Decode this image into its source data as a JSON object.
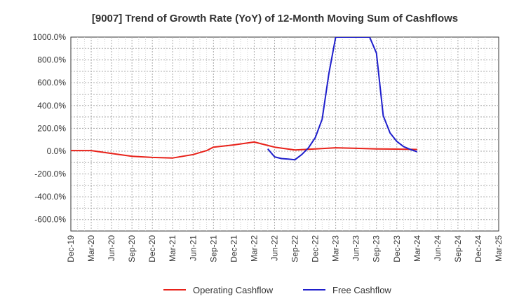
{
  "chart_data": {
    "type": "line",
    "title": "[9007]  Trend of Growth Rate (YoY) of 12-Month Moving Sum of Cashflows",
    "xlabel": "",
    "ylabel": "",
    "ylim": [
      -700,
      1000
    ],
    "y_ticks": [
      1000,
      800,
      600,
      400,
      200,
      0,
      -200,
      -400,
      -600
    ],
    "y_tick_labels": [
      "1000.0%",
      "800.0%",
      "600.0%",
      "400.0%",
      "200.0%",
      "0.0%",
      "-200.0%",
      "-400.0%",
      "-600.0%"
    ],
    "x_range": [
      "Dec-19",
      "Mar-25"
    ],
    "x_tick_labels": [
      "Dec-19",
      "Mar-20",
      "Jun-20",
      "Sep-20",
      "Dec-20",
      "Mar-21",
      "Jun-21",
      "Sep-21",
      "Dec-21",
      "Mar-22",
      "Jun-22",
      "Sep-22",
      "Dec-22",
      "Mar-23",
      "Jun-23",
      "Sep-23",
      "Dec-23",
      "Mar-24",
      "Jun-24",
      "Sep-24",
      "Dec-24",
      "Mar-25"
    ],
    "grid": true,
    "legend_position": "bottom",
    "series": [
      {
        "name": "Operating Cashflow",
        "color": "#e8221a",
        "points": [
          [
            "Dec-19",
            5
          ],
          [
            "Mar-20",
            5
          ],
          [
            "Jun-20",
            -20
          ],
          [
            "Sep-20",
            -45
          ],
          [
            "Dec-20",
            -55
          ],
          [
            "Mar-21",
            -60
          ],
          [
            "Jun-21",
            -30
          ],
          [
            "Aug-21",
            5
          ],
          [
            "Sep-21",
            35
          ],
          [
            "Dec-21",
            55
          ],
          [
            "Mar-22",
            80
          ],
          [
            "Jun-22",
            35
          ],
          [
            "Sep-22",
            10
          ],
          [
            "Dec-22",
            20
          ],
          [
            "Mar-23",
            30
          ],
          [
            "Jun-23",
            25
          ],
          [
            "Sep-23",
            20
          ],
          [
            "Dec-23",
            18
          ],
          [
            "Mar-24",
            15
          ]
        ]
      },
      {
        "name": "Free Cashflow",
        "color": "#1f1fcc",
        "points": [
          [
            "May-22",
            20
          ],
          [
            "Jun-22",
            -50
          ],
          [
            "Jul-22",
            -65
          ],
          [
            "Aug-22",
            -70
          ],
          [
            "Sep-22",
            -75
          ],
          [
            "Oct-22",
            -30
          ],
          [
            "Nov-22",
            30
          ],
          [
            "Dec-22",
            120
          ],
          [
            "Jan-23",
            280
          ],
          [
            "Feb-23",
            680
          ],
          [
            "Mar-23",
            1000
          ],
          [
            "Aug-23",
            1000
          ],
          [
            "Sep-23",
            860
          ],
          [
            "Oct-23",
            310
          ],
          [
            "Nov-23",
            160
          ],
          [
            "Dec-23",
            85
          ],
          [
            "Jan-24",
            40
          ],
          [
            "Feb-24",
            15
          ],
          [
            "Mar-24",
            -5
          ]
        ]
      }
    ]
  }
}
